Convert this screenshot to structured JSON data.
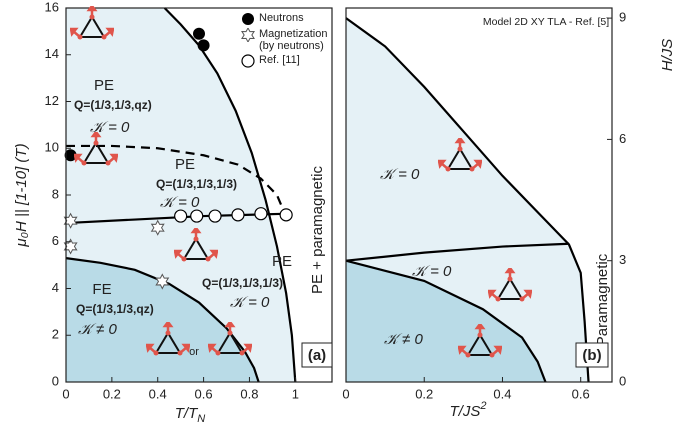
{
  "chart_data": [
    {
      "type": "phase",
      "x_label": "T/T",
      "x_label_sub": "N",
      "y_label": "μ₀H || [1-10] (T)",
      "panel_label": "(a)",
      "xlim": [
        0,
        1.16
      ],
      "ylim": [
        0,
        16
      ],
      "xticks": [
        0,
        0.2,
        0.4,
        0.6,
        0.8,
        1
      ],
      "yticks": [
        0,
        2,
        4,
        6,
        8,
        10,
        12,
        14,
        16
      ],
      "yaxis": "left",
      "annotations": [
        "PE",
        "Q=(1/3,1/3,qz)",
        "𝒦 = 0",
        "PE",
        "Q=(1/3,1/3,1/3)",
        "𝒦 = 0",
        "PE",
        "Q=(1/3,1/3,1/3)",
        "𝒦 = 0",
        "FE",
        "Q=(1/3,1/3,qz)",
        "𝒦 ≠ 0",
        "or",
        "PE + paramagnetic"
      ],
      "series": [
        {
          "color": "#000000",
          "style": "solid",
          "fill": "#e5f1f6",
          "x": [
            0.43,
            0.5,
            0.58,
            0.66,
            0.74,
            0.81,
            0.87,
            0.92,
            0.96,
            0.985,
            1
          ],
          "values": [
            16,
            15.3,
            14.4,
            13.2,
            11.6,
            9.8,
            7.8,
            5.8,
            3.8,
            2,
            0
          ]
        },
        {
          "color": "#000000",
          "style": "solid",
          "fill": "#b9dbe7",
          "x": [
            0,
            0.15,
            0.3,
            0.45,
            0.58,
            0.7,
            0.78,
            0.82,
            0.84
          ],
          "values": [
            5.3,
            5.1,
            4.8,
            4.2,
            3.4,
            2.3,
            1.3,
            0.6,
            0
          ]
        },
        {
          "color": "#000000",
          "style": "dashed",
          "x": [
            0,
            0.2,
            0.4,
            0.6,
            0.75,
            0.85,
            0.92,
            0.95
          ],
          "values": [
            10.1,
            10.1,
            10,
            9.7,
            9.3,
            8.7,
            8,
            7.3
          ]
        },
        {
          "color": "#000000",
          "style": "solid",
          "x": [
            0,
            0.3,
            0.6,
            0.97
          ],
          "values": [
            6.8,
            6.95,
            7.1,
            7.2
          ]
        },
        {
          "name": "Neutrons",
          "marker": "filled-circle",
          "color": "#000000",
          "x": [
            0.02,
            0.58,
            0.6
          ],
          "values": [
            9.7,
            14.9,
            14.4
          ]
        },
        {
          "name": "Magnetization (by neutrons)",
          "marker": "star",
          "color": "#555555",
          "x": [
            0.02,
            0.02,
            0.4,
            0.42
          ],
          "values": [
            6.9,
            5.8,
            6.6,
            4.3
          ]
        },
        {
          "name": "Ref. [11]",
          "marker": "open-circle",
          "color": "#000000",
          "x": [
            0.5,
            0.57,
            0.65,
            0.75,
            0.85,
            0.96
          ],
          "values": [
            7.1,
            7.1,
            7.1,
            7.15,
            7.2,
            7.15
          ]
        }
      ]
    },
    {
      "type": "phase",
      "title": "Model 2D XY TLA - Ref. [5]",
      "x_label": "T/JS",
      "x_label_sup": "2",
      "y_label": "H/JS",
      "panel_label": "(b)",
      "xlim": [
        0,
        0.68
      ],
      "ylim": [
        0,
        9.25
      ],
      "xticks": [
        0,
        0.2,
        0.4,
        0.6
      ],
      "yticks": [
        0,
        3,
        6,
        9
      ],
      "yaxis": "right",
      "annotations": [
        "𝒦 = 0",
        "𝒦 = 0",
        "𝒦 ≠ 0",
        "Paramagnetic"
      ],
      "series": [
        {
          "color": "#000000",
          "style": "solid",
          "fill": "#e5f1f6",
          "x": [
            0,
            0.1,
            0.2,
            0.3,
            0.4,
            0.5,
            0.57,
            0.6,
            0.61,
            0.62
          ],
          "values": [
            9,
            8.3,
            7.3,
            6.2,
            5.1,
            4.1,
            3.4,
            2.7,
            1.5,
            0
          ]
        },
        {
          "color": "#000000",
          "style": "solid",
          "fill": "#b9dbe7",
          "x": [
            0,
            0.2,
            0.35,
            0.45,
            0.49,
            0.51
          ],
          "values": [
            3,
            2.5,
            1.8,
            1.1,
            0.5,
            0
          ]
        },
        {
          "color": "#000000",
          "style": "solid",
          "x": [
            0,
            0.2,
            0.4,
            0.57
          ],
          "values": [
            3,
            3.2,
            3.35,
            3.42
          ]
        }
      ]
    }
  ]
}
